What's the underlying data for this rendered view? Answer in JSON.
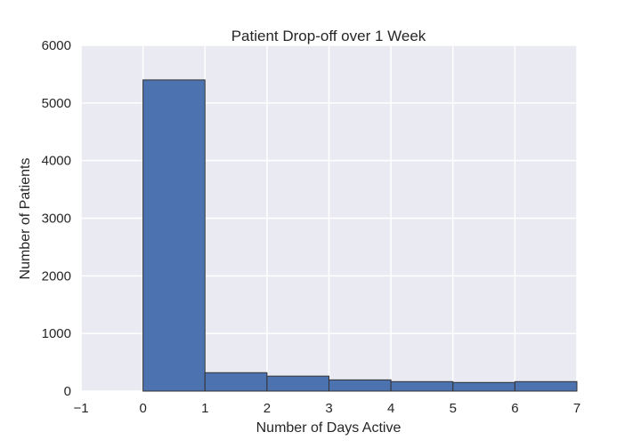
{
  "chart_data": {
    "type": "bar",
    "title": "Patient Drop-off over 1 Week",
    "xlabel": "Number of Days Active",
    "ylabel": "Number of Patients",
    "xlim": [
      -1,
      7
    ],
    "ylim": [
      0,
      6000
    ],
    "x_ticks": [
      "−1",
      "0",
      "1",
      "2",
      "3",
      "4",
      "5",
      "6",
      "7"
    ],
    "y_ticks": [
      "0",
      "1000",
      "2000",
      "3000",
      "4000",
      "5000",
      "6000"
    ],
    "bins": [
      {
        "x0": 0,
        "x1": 1,
        "value": 5400
      },
      {
        "x0": 1,
        "x1": 2,
        "value": 320
      },
      {
        "x0": 2,
        "x1": 3,
        "value": 260
      },
      {
        "x0": 3,
        "x1": 4,
        "value": 195
      },
      {
        "x0": 4,
        "x1": 5,
        "value": 165
      },
      {
        "x0": 5,
        "x1": 6,
        "value": 150
      },
      {
        "x0": 6,
        "x1": 7,
        "value": 165
      }
    ],
    "grid": true,
    "legend": "none",
    "colors": {
      "bar_fill": "#4c72b0",
      "bar_edge": "#333333",
      "axes_background": "#eaeaf2",
      "grid": "#ffffff",
      "text": "#262626"
    }
  }
}
